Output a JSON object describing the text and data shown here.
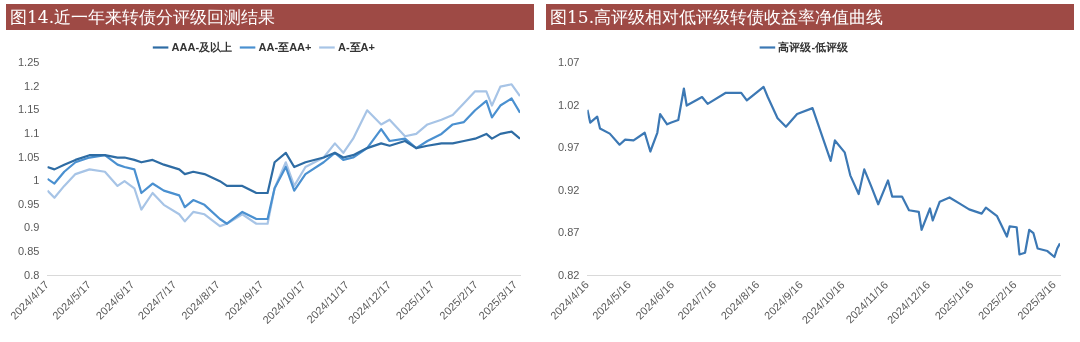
{
  "chart_data": [
    {
      "type": "line",
      "title": "图14.近一年来转债分评级回测结果",
      "legend": "top",
      "grid": false,
      "x": [
        "2024-04-17",
        "2024-04-22",
        "2024-04-29",
        "2024-05-07",
        "2024-05-17",
        "2024-05-28",
        "2024-06-06",
        "2024-06-11",
        "2024-06-18",
        "2024-06-23",
        "2024-07-01",
        "2024-07-09",
        "2024-07-20",
        "2024-07-24",
        "2024-07-30",
        "2024-08-07",
        "2024-08-18",
        "2024-08-23",
        "2024-09-03",
        "2024-09-13",
        "2024-09-21",
        "2024-09-26",
        "2024-10-04",
        "2024-10-10",
        "2024-10-18",
        "2024-10-31",
        "2024-11-08",
        "2024-11-14",
        "2024-11-21",
        "2024-12-01",
        "2024-12-11",
        "2024-12-17",
        "2024-12-28",
        "2025-01-05",
        "2025-01-13",
        "2025-01-23",
        "2025-01-31",
        "2025-02-08",
        "2025-02-16",
        "2025-02-24",
        "2025-02-28",
        "2025-03-06",
        "2025-03-14",
        "2025-03-20"
      ],
      "series": [
        {
          "name": "AAA-及以上",
          "color": "#2e6ca4",
          "values": [
            1.03,
            1.025,
            1.035,
            1.045,
            1.055,
            1.055,
            1.05,
            1.05,
            1.045,
            1.04,
            1.045,
            1.035,
            1.025,
            1.015,
            1.02,
            1.015,
            1.0,
            0.99,
            0.99,
            0.975,
            0.975,
            1.04,
            1.06,
            1.03,
            1.04,
            1.05,
            1.06,
            1.05,
            1.055,
            1.07,
            1.08,
            1.075,
            1.085,
            1.07,
            1.075,
            1.08,
            1.08,
            1.085,
            1.09,
            1.1,
            1.09,
            1.1,
            1.105,
            1.09
          ]
        },
        {
          "name": "AA-至AA+",
          "color": "#4a90d0",
          "values": [
            1.005,
            0.995,
            1.02,
            1.04,
            1.05,
            1.055,
            1.035,
            1.03,
            1.025,
            0.975,
            0.995,
            0.98,
            0.97,
            0.945,
            0.96,
            0.95,
            0.92,
            0.91,
            0.935,
            0.92,
            0.92,
            0.985,
            1.03,
            0.98,
            1.015,
            1.04,
            1.06,
            1.045,
            1.05,
            1.07,
            1.11,
            1.085,
            1.09,
            1.07,
            1.085,
            1.1,
            1.12,
            1.125,
            1.15,
            1.17,
            1.135,
            1.16,
            1.175,
            1.145
          ]
        },
        {
          "name": "A-至A+",
          "color": "#a7c4e6",
          "values": [
            0.98,
            0.965,
            0.99,
            1.015,
            1.025,
            1.02,
            0.99,
            1.0,
            0.985,
            0.94,
            0.975,
            0.95,
            0.93,
            0.915,
            0.935,
            0.93,
            0.905,
            0.91,
            0.93,
            0.91,
            0.91,
            0.985,
            1.04,
            0.99,
            1.03,
            1.05,
            1.08,
            1.06,
            1.09,
            1.15,
            1.12,
            1.13,
            1.095,
            1.1,
            1.12,
            1.13,
            1.14,
            1.165,
            1.19,
            1.19,
            1.16,
            1.2,
            1.205,
            1.18
          ]
        }
      ],
      "xlim": [
        "2024-04-17",
        "2025-03-20"
      ],
      "xticks": [
        {
          "value": "2024-04-17",
          "label": "2024/4/17"
        },
        {
          "value": "2024-05-17",
          "label": "2024/5/17"
        },
        {
          "value": "2024-06-17",
          "label": "2024/6/17"
        },
        {
          "value": "2024-07-17",
          "label": "2024/7/17"
        },
        {
          "value": "2024-08-17",
          "label": "2024/8/17"
        },
        {
          "value": "2024-09-17",
          "label": "2024/9/17"
        },
        {
          "value": "2024-10-17",
          "label": "2024/10/17"
        },
        {
          "value": "2024-11-17",
          "label": "2024/11/17"
        },
        {
          "value": "2024-12-17",
          "label": "2024/12/17"
        },
        {
          "value": "2025-01-17",
          "label": "2025/1/17"
        },
        {
          "value": "2025-02-17",
          "label": "2025/2/17"
        },
        {
          "value": "2025-03-17",
          "label": "2025/3/17"
        }
      ],
      "ylim": [
        0.8,
        1.25
      ],
      "yticks": [
        0.8,
        0.85,
        0.9,
        0.95,
        1,
        1.05,
        1.1,
        1.15,
        1.2,
        1.25
      ]
    },
    {
      "type": "line",
      "title": "图15.高评级相对低评级转债收益率净值曲线",
      "legend": "top",
      "grid": false,
      "x": [
        "2024-04-16",
        "2024-04-18",
        "2024-04-23",
        "2024-04-25",
        "2024-05-02",
        "2024-05-09",
        "2024-05-13",
        "2024-05-19",
        "2024-05-27",
        "2024-05-31",
        "2024-06-05",
        "2024-06-07",
        "2024-06-12",
        "2024-06-15",
        "2024-06-20",
        "2024-06-24",
        "2024-06-26",
        "2024-07-07",
        "2024-07-11",
        "2024-07-24",
        "2024-08-04",
        "2024-08-08",
        "2024-08-20",
        "2024-08-23",
        "2024-08-30",
        "2024-09-05",
        "2024-09-13",
        "2024-09-24",
        "2024-10-07",
        "2024-10-10",
        "2024-10-17",
        "2024-10-21",
        "2024-10-27",
        "2024-10-31",
        "2024-11-05",
        "2024-11-10",
        "2024-11-17",
        "2024-11-20",
        "2024-11-27",
        "2024-12-02",
        "2024-12-09",
        "2024-12-11",
        "2024-12-17",
        "2024-12-19",
        "2024-12-24",
        "2024-12-31",
        "2025-01-07",
        "2025-01-14",
        "2025-01-23",
        "2025-01-26",
        "2025-02-03",
        "2025-02-10",
        "2025-02-12",
        "2025-02-17",
        "2025-02-19",
        "2025-02-23",
        "2025-02-26",
        "2025-03-01",
        "2025-03-04",
        "2025-03-11",
        "2025-03-16",
        "2025-03-18",
        "2025-03-20"
      ],
      "series": [
        {
          "name": "高评级-低评级",
          "color": "#3c78b4",
          "values": [
            1.015,
            1.0,
            1.007,
            0.993,
            0.987,
            0.974,
            0.98,
            0.979,
            0.988,
            0.966,
            0.988,
            1.01,
            0.998,
            1.0,
            1.003,
            1.04,
            1.02,
            1.03,
            1.022,
            1.035,
            1.035,
            1.026,
            1.042,
            1.03,
            1.005,
            0.995,
            1.01,
            1.017,
            0.955,
            0.979,
            0.965,
            0.938,
            0.916,
            0.945,
            0.925,
            0.904,
            0.932,
            0.913,
            0.913,
            0.897,
            0.895,
            0.874,
            0.899,
            0.885,
            0.907,
            0.912,
            0.905,
            0.898,
            0.893,
            0.9,
            0.89,
            0.866,
            0.878,
            0.877,
            0.845,
            0.847,
            0.874,
            0.87,
            0.852,
            0.849,
            0.842,
            0.852,
            0.858
          ]
        }
      ],
      "xlim": [
        "2024-04-16",
        "2025-03-20"
      ],
      "xticks": [
        {
          "value": "2024-04-16",
          "label": "2024/4/16"
        },
        {
          "value": "2024-05-16",
          "label": "2024/5/16"
        },
        {
          "value": "2024-06-16",
          "label": "2024/6/16"
        },
        {
          "value": "2024-07-16",
          "label": "2024/7/16"
        },
        {
          "value": "2024-08-16",
          "label": "2024/8/16"
        },
        {
          "value": "2024-09-16",
          "label": "2024/9/16"
        },
        {
          "value": "2024-10-16",
          "label": "2024/10/16"
        },
        {
          "value": "2024-11-16",
          "label": "2024/11/16"
        },
        {
          "value": "2024-12-16",
          "label": "2024/12/16"
        },
        {
          "value": "2025-01-16",
          "label": "2025/1/16"
        },
        {
          "value": "2025-02-16",
          "label": "2025/2/16"
        },
        {
          "value": "2025-03-16",
          "label": "2025/3/16"
        }
      ],
      "ylim": [
        0.82,
        1.07
      ],
      "yticks": [
        0.82,
        0.87,
        0.92,
        0.97,
        1.02,
        1.07
      ]
    }
  ]
}
